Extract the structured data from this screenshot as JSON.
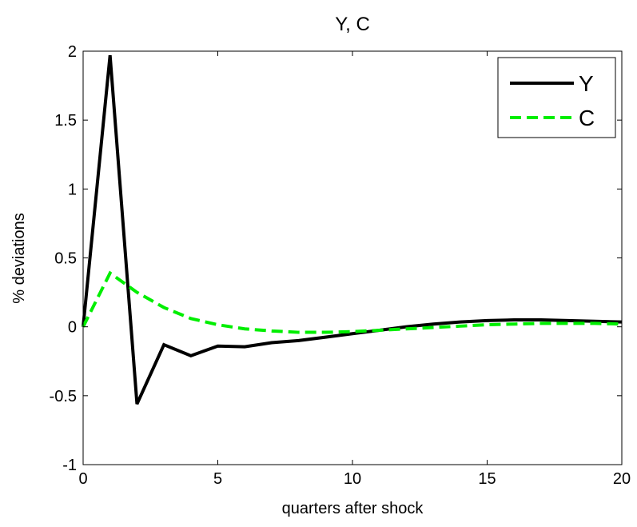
{
  "chart_data": {
    "type": "line",
    "title": "Y, C",
    "xlabel": "quarters after shock",
    "ylabel": "% deviations",
    "xlim": [
      0,
      20
    ],
    "ylim": [
      -1,
      2
    ],
    "xticks": [
      0,
      5,
      10,
      15,
      20
    ],
    "yticks": [
      -1,
      -0.5,
      0,
      0.5,
      1,
      1.5,
      2
    ],
    "xtick_labels": [
      "0",
      "5",
      "10",
      "15",
      "20"
    ],
    "ytick_labels": [
      "-1",
      "-0.5",
      "0",
      "0.5",
      "1",
      "1.5",
      "2"
    ],
    "grid": false,
    "legend_position": "top-right",
    "x": [
      0,
      1,
      2,
      3,
      4,
      5,
      6,
      7,
      8,
      9,
      10,
      11,
      12,
      13,
      14,
      15,
      16,
      17,
      18,
      19,
      20
    ],
    "series": [
      {
        "name": "Y",
        "color": "#000000",
        "style": "solid",
        "values": [
          0,
          1.97,
          -0.56,
          -0.13,
          -0.21,
          -0.14,
          -0.145,
          -0.115,
          -0.1,
          -0.075,
          -0.05,
          -0.025,
          0.0,
          0.02,
          0.035,
          0.045,
          0.05,
          0.05,
          0.045,
          0.04,
          0.035
        ]
      },
      {
        "name": "C",
        "color": "#00ee00",
        "style": "dashed",
        "values": [
          0,
          0.39,
          0.25,
          0.14,
          0.06,
          0.015,
          -0.015,
          -0.03,
          -0.04,
          -0.04,
          -0.035,
          -0.025,
          -0.015,
          -0.005,
          0.005,
          0.015,
          0.02,
          0.025,
          0.025,
          0.025,
          0.02
        ]
      }
    ]
  }
}
